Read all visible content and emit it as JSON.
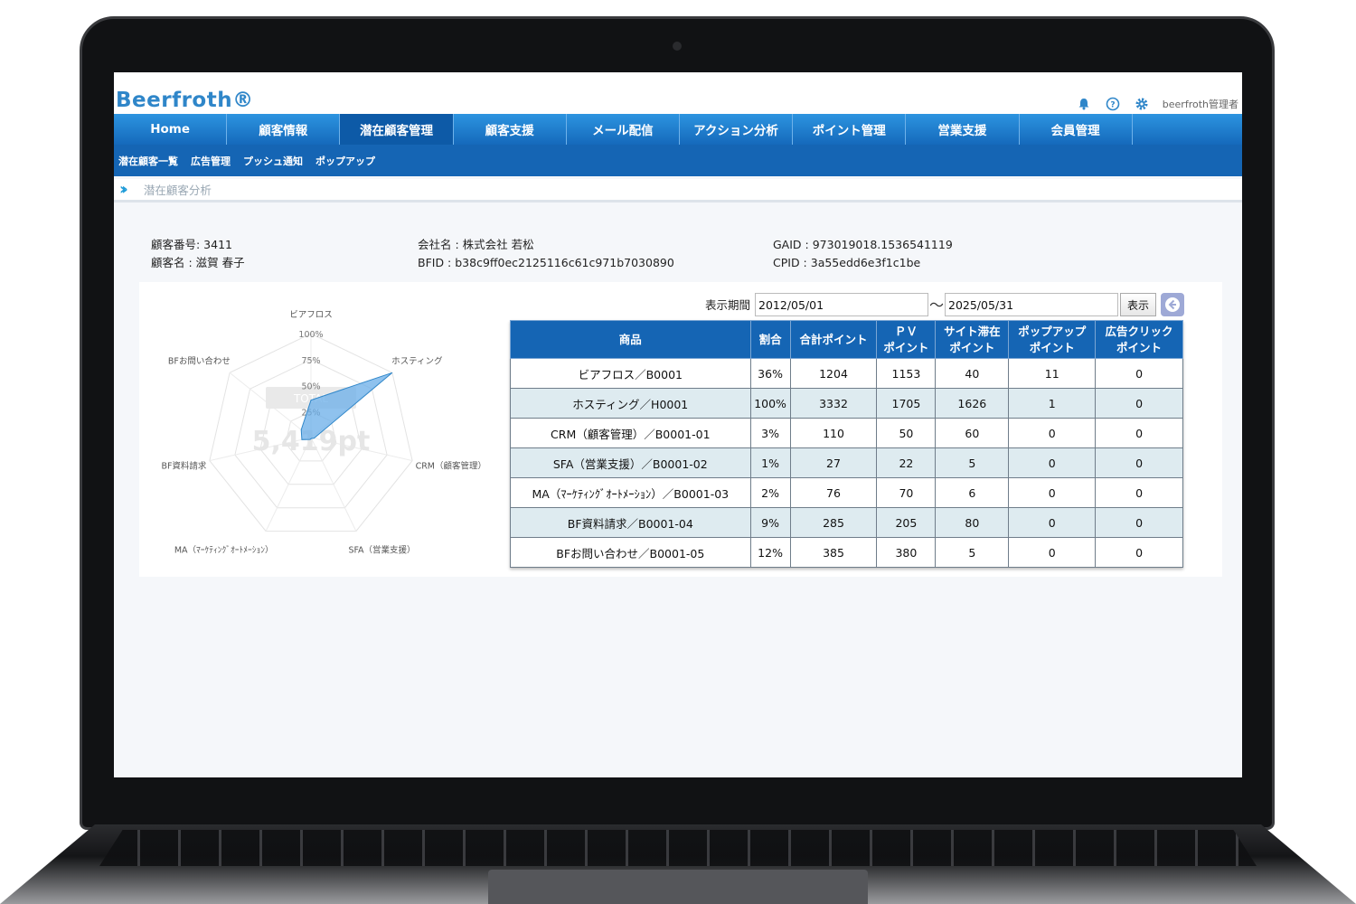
{
  "app": {
    "logo": "Beerfroth®",
    "user_label": "beerfroth管理者",
    "icons": [
      "bell-icon",
      "help-icon",
      "gear-icon"
    ]
  },
  "main_nav": [
    {
      "label": "Home"
    },
    {
      "label": "顧客情報"
    },
    {
      "label": "潜在顧客管理",
      "active": true
    },
    {
      "label": "顧客支援"
    },
    {
      "label": "メール配信"
    },
    {
      "label": "アクション分析"
    },
    {
      "label": "ポイント管理"
    },
    {
      "label": "営業支援"
    },
    {
      "label": "会員管理"
    }
  ],
  "sub_nav": [
    {
      "label": "潜在顧客一覧"
    },
    {
      "label": "広告管理"
    },
    {
      "label": "プッシュ通知"
    },
    {
      "label": "ポップアップ"
    }
  ],
  "page_title": "潜在顧客分析",
  "customer": {
    "number_line": "顧客番号: 3411",
    "name_line": "顧客名 : 滋賀 春子",
    "company_line": "会社名 : 株式会社 若松",
    "bfid_line": "BFID : b38c9ff0ec2125116c61c971b7030890",
    "gaid_line": "GAID : 973019018.1536541119",
    "cpid_line": "CPID : 3a55edd6e3f1c1be"
  },
  "period": {
    "label": "表示期間",
    "start": "2012/05/01",
    "separator": "〜",
    "end": "2025/05/31",
    "show_button": "表示"
  },
  "table": {
    "headers": [
      "商品",
      "割合",
      "合計ポイント",
      "ＰＶ\nポイント",
      "サイト滞在\nポイント",
      "ポップアップ\nポイント",
      "広告クリック\nポイント"
    ],
    "rows": [
      [
        "ビアフロス／B0001",
        "36%",
        "1204",
        "1153",
        "40",
        "11",
        "0"
      ],
      [
        "ホスティング／H0001",
        "100%",
        "3332",
        "1705",
        "1626",
        "1",
        "0"
      ],
      [
        "CRM（顧客管理）／B0001-01",
        "3%",
        "110",
        "50",
        "60",
        "0",
        "0"
      ],
      [
        "SFA（営業支援）／B0001-02",
        "1%",
        "27",
        "22",
        "5",
        "0",
        "0"
      ],
      [
        "MA（ﾏｰｹﾃｨﾝｸﾞｵｰﾄﾒｰｼｮﾝ）／B0001-03",
        "2%",
        "76",
        "70",
        "6",
        "0",
        "0"
      ],
      [
        "BF資料請求／B0001-04",
        "9%",
        "285",
        "205",
        "80",
        "0",
        "0"
      ],
      [
        "BFお問い合わせ／B0001-05",
        "12%",
        "385",
        "380",
        "5",
        "0",
        "0"
      ]
    ]
  },
  "chart_data": {
    "type": "radar",
    "axes": [
      "ビアフロス",
      "ホスティング",
      "CRM（顧客管理）",
      "SFA（営業支援）",
      "MA（ﾏｰｹﾃｨﾝｸﾞｵｰﾄﾒｰｼｮﾝ）",
      "BF資料請求",
      "BFお問い合わせ"
    ],
    "values": [
      36,
      100,
      3,
      1,
      2,
      9,
      12
    ],
    "ticks": [
      "100%",
      "75%",
      "50%",
      "25%"
    ],
    "range": [
      0,
      100
    ],
    "center_label": "TOTAL",
    "center_value": "5,419pt",
    "fill_color": "#6aaee8",
    "stroke_color": "#2f86c9"
  },
  "colors": {
    "nav_blue": "#1565b4",
    "logo_blue": "#2f86c9",
    "row_alt": "#deebf0"
  }
}
